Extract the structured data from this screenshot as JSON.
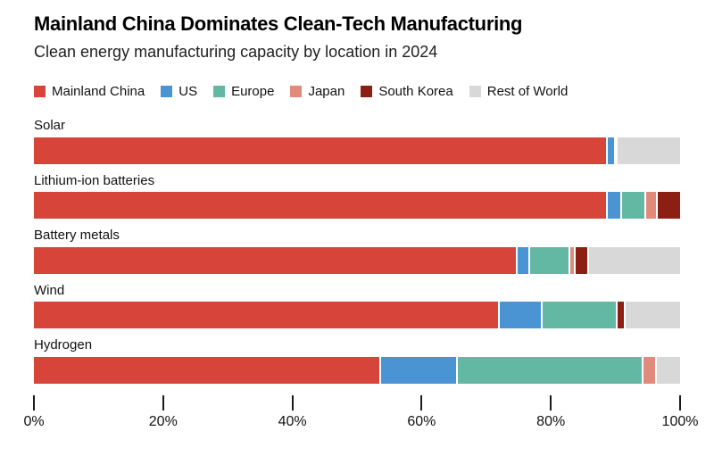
{
  "header": {
    "title": "Mainland China Dominates Clean-Tech Manufacturing",
    "subtitle": "Clean energy manufacturing capacity by location in 2024"
  },
  "legend": [
    {
      "label": "Mainland China",
      "color": "#d6443a"
    },
    {
      "label": "US",
      "color": "#4a94d4"
    },
    {
      "label": "Europe",
      "color": "#62b8a3"
    },
    {
      "label": "Japan",
      "color": "#e08a7c"
    },
    {
      "label": "South Korea",
      "color": "#8b1f14"
    },
    {
      "label": "Rest of World",
      "color": "#d8d8d8"
    }
  ],
  "chart_data": {
    "type": "bar",
    "stacked": true,
    "orientation": "horizontal",
    "title": "Mainland China Dominates Clean-Tech Manufacturing",
    "subtitle": "Clean energy manufacturing capacity by location in 2024",
    "categories": [
      "Solar",
      "Lithium-ion batteries",
      "Battery metals",
      "Wind",
      "Hydrogen"
    ],
    "series": [
      {
        "name": "Mainland China",
        "color": "#d6443a",
        "values": [
          88.8,
          88.8,
          74.9,
          72.1,
          53.7
        ]
      },
      {
        "name": "US",
        "color": "#4a94d4",
        "values": [
          1.2,
          2.2,
          1.9,
          6.6,
          11.9
        ]
      },
      {
        "name": "Europe",
        "color": "#62b8a3",
        "values": [
          0,
          3.8,
          6.2,
          11.7,
          28.7
        ]
      },
      {
        "name": "Japan",
        "color": "#e08a7c",
        "values": [
          0,
          1.7,
          0.8,
          0,
          2.1
        ]
      },
      {
        "name": "South Korea",
        "color": "#8b1f14",
        "values": [
          0.4,
          3.5,
          2.1,
          1.2,
          0
        ]
      },
      {
        "name": "Rest of World",
        "color": "#d8d8d8",
        "values": [
          9.6,
          0,
          14.1,
          8.4,
          3.6
        ]
      }
    ],
    "xlabel": "",
    "ylabel": "",
    "x_ticks": [
      "0%",
      "20%",
      "40%",
      "60%",
      "80%",
      "100%"
    ],
    "xlim": [
      0,
      100
    ],
    "grid": false,
    "legend_position": "top",
    "unit": "%"
  }
}
